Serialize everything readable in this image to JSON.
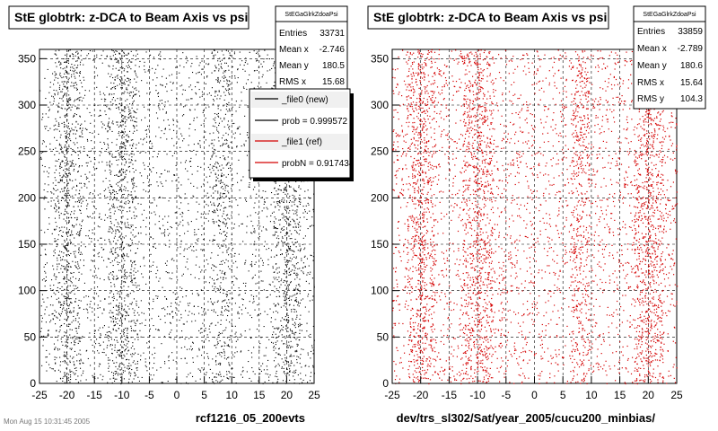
{
  "footer_stamp": "Mon Aug 15 10:31:45 2005",
  "colors": {
    "left_points": "#000000",
    "right_points": "#d40000",
    "legend_ref": "#d40000"
  },
  "chart_data": [
    {
      "type": "scatter",
      "title": "StE globtrk: z-DCA to Beam Axis vs psi",
      "xlabel": "rcf1216_05_200evts",
      "ylabel": "",
      "xlim": [
        -25,
        25
      ],
      "ylim": [
        0,
        360
      ],
      "x_ticks": [
        -25,
        -20,
        -15,
        -10,
        -5,
        0,
        5,
        10,
        15,
        20,
        25
      ],
      "y_ticks": [
        0,
        50,
        100,
        150,
        200,
        250,
        300,
        350
      ],
      "grid": true,
      "point_color": "#000000",
      "density_note": "uniform in psi, denser near x=-20, -10, 8, 20",
      "stats": {
        "header": "StEGaGlrkZdoaPsi",
        "rows": [
          {
            "label": "Entries",
            "value": "33731"
          },
          {
            "label": "Mean x",
            "value": "-2.746"
          },
          {
            "label": "Mean y",
            "value": "180.5"
          },
          {
            "label": "RMS x",
            "value": "15.68"
          }
        ]
      },
      "legend": {
        "placement": "top-right",
        "entries": [
          {
            "label": "_file0 (new)",
            "color": "#000000"
          },
          {
            "label": "prob = 0.999572",
            "color": "#000000"
          },
          {
            "label": "_file1 (ref)",
            "color": "#d40000"
          },
          {
            "label": "probN = 0.917434",
            "color": "#d40000"
          }
        ]
      }
    },
    {
      "type": "scatter",
      "title": "StE globtrk: z-DCA to Beam Axis vs psi",
      "xlabel": "dev/trs_sl302/Sat/year_2005/cucu200_minbias/",
      "ylabel": "",
      "xlim": [
        -25,
        25
      ],
      "ylim": [
        0,
        360
      ],
      "x_ticks": [
        -25,
        -20,
        -15,
        -10,
        -5,
        0,
        5,
        10,
        15,
        20,
        25
      ],
      "y_ticks": [
        0,
        50,
        100,
        150,
        200,
        250,
        300,
        350
      ],
      "grid": true,
      "point_color": "#d40000",
      "stats": {
        "header": "StEGaGlrkZdoaPsi",
        "rows": [
          {
            "label": "Entries",
            "value": "33859"
          },
          {
            "label": "Mean x",
            "value": "-2.789"
          },
          {
            "label": "Mean y",
            "value": "180.6"
          },
          {
            "label": "RMS x",
            "value": "15.64"
          },
          {
            "label": "RMS y",
            "value": "104.3"
          }
        ]
      }
    }
  ]
}
